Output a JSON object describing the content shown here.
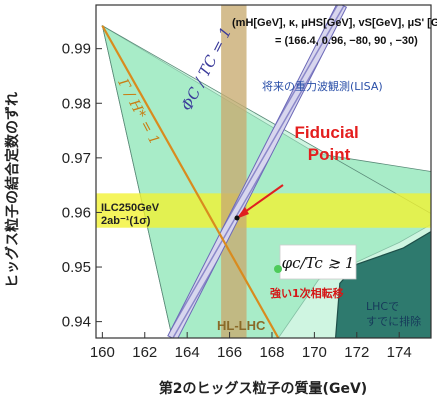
{
  "chart_data": {
    "type": "area",
    "xlabel": "第2のヒッグス粒子の質量(GeV)",
    "ylabel": "ヒッグス粒子の結合定数のずれ",
    "xlim": [
      159.7,
      175.5
    ],
    "ylim": [
      0.937,
      0.998
    ],
    "xticks": [
      160,
      162,
      164,
      166,
      168,
      170,
      172,
      174
    ],
    "yticks": [
      0.94,
      0.95,
      0.96,
      0.97,
      0.98,
      0.99
    ],
    "x_tick_labels": [
      "160",
      "162",
      "164",
      "166",
      "168",
      "170",
      "172",
      "174"
    ],
    "y_tick_labels": [
      "0.94",
      "0.95",
      "0.96",
      "0.97",
      "0.98",
      "0.99"
    ],
    "params_line1": "(mH[GeV], κ, μHS[GeV], vS[GeV], μS' [GeV])",
    "params_line2": "= (166.4, 0.96, −80, 90 , −30)",
    "regions": [
      {
        "label": "将来の重力波観測(LISA)",
        "color": "#a8ecc8",
        "polygon": [
          [
            160,
            0.9942
          ],
          [
            170.1,
            0.9708
          ],
          [
            175.5,
            0.9675
          ],
          [
            175.5,
            0.9578
          ],
          [
            174,
            0.9545
          ],
          [
            170.2,
            0.9477
          ],
          [
            168.3,
            0.937
          ],
          [
            163.3,
            0.937
          ]
        ]
      },
      {
        "label": "強い1次相転移",
        "color": "#a8ecc8",
        "polygon": [
          [
            160,
            0.9942
          ],
          [
            175.5,
            0.9598
          ],
          [
            175.5,
            0.937
          ],
          [
            163.3,
            0.937
          ]
        ]
      },
      {
        "label": "LHCで\nすでに排除",
        "color": "#2e7a6e",
        "polygon": [
          [
            171,
            0.937
          ],
          [
            175.5,
            0.937
          ],
          [
            175.5,
            0.9565
          ],
          [
            174.2,
            0.9535
          ],
          [
            172,
            0.9505
          ],
          [
            171.2,
            0.947
          ]
        ]
      }
    ],
    "curves": [
      {
        "name": "ΦC / TC = 1",
        "color": "#5a5ab8",
        "points": [
          [
            163.3,
            0.937
          ],
          [
            171.3,
            0.998
          ]
        ]
      },
      {
        "name": "Γ / H* = 1",
        "color": "#d98b1e",
        "points": [
          [
            160,
            0.9942
          ],
          [
            168.3,
            0.937
          ]
        ]
      }
    ],
    "bands": [
      {
        "label": "ILC250GeV\n2ab⁻¹(1σ)",
        "orientation": "horizontal",
        "range": [
          0.9572,
          0.9635
        ],
        "color": "#f2f230"
      },
      {
        "label": "HL-LHC",
        "orientation": "vertical",
        "range": [
          165.6,
          166.8
        ],
        "color": "#c8aa70"
      }
    ],
    "fiducial_point": {
      "label": "Fiducial\nPoint",
      "x": 166.4,
      "y": 0.96,
      "label_x": 168.9,
      "label_y": 0.9705
    },
    "formula": "φc/Tc ≳ 1",
    "grid": false
  }
}
